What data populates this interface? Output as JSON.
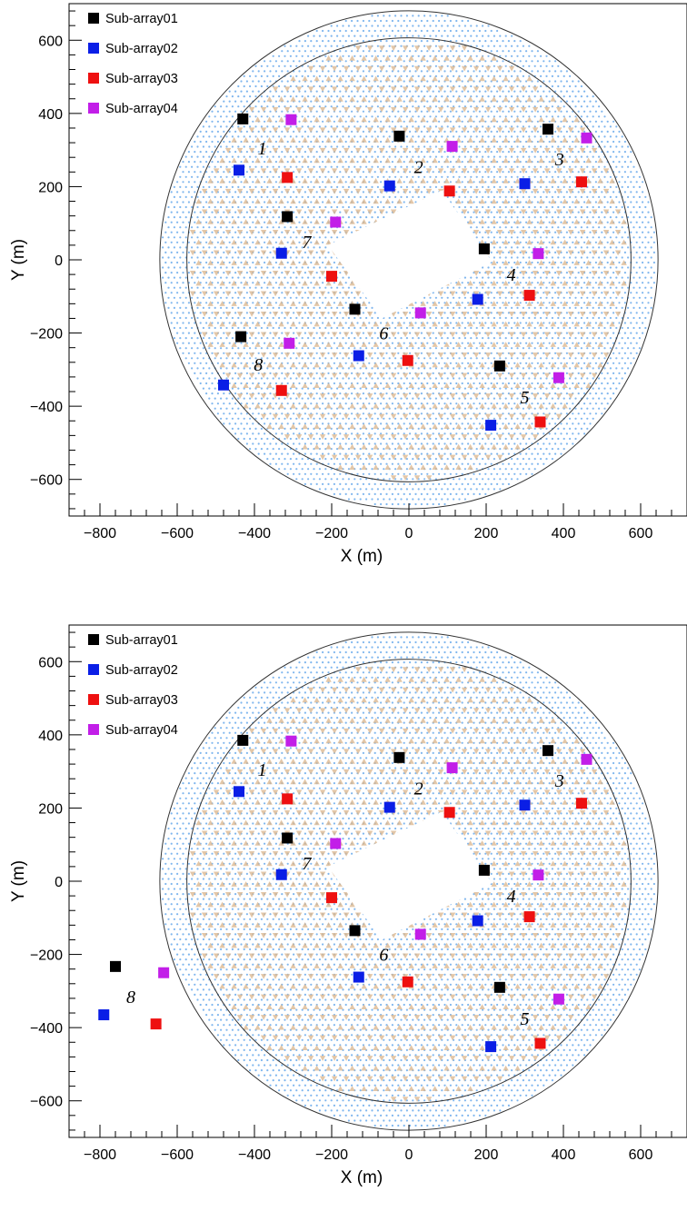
{
  "colors": {
    "Sub-array01": "#000000",
    "Sub-array02": "#0a1ee6",
    "Sub-array03": "#ee1010",
    "Sub-array04": "#c21ee8",
    "detector_blue": "#7fb6ee",
    "detector_tan": "#d9b48b",
    "circle": "#333333"
  },
  "chart_data": [
    {
      "type": "scatter",
      "xlabel": "X (m)",
      "ylabel": "Y (m)",
      "xlim": [
        -880,
        720
      ],
      "ylim": [
        -700,
        700
      ],
      "xticks": [
        -800,
        -600,
        -400,
        -200,
        0,
        200,
        400,
        600
      ],
      "yticks": [
        -600,
        -400,
        -200,
        0,
        200,
        400,
        600
      ],
      "xtick_labels": [
        "−800",
        "−600",
        "−400",
        "−200",
        "0",
        "200",
        "400",
        "600"
      ],
      "ytick_labels": [
        "−600",
        "−400",
        "−200",
        "0",
        "200",
        "400",
        "600"
      ],
      "legend_position": "top-left",
      "boundary_circles_radius": [
        575,
        645
      ],
      "central_hole": [
        [
          -210,
          40
        ],
        [
          85,
          190
        ],
        [
          215,
          -5
        ],
        [
          -70,
          -160
        ]
      ],
      "series": [
        {
          "name": "Sub-array01",
          "points": [
            [
              -430,
              385
            ],
            [
              -25,
              338
            ],
            [
              360,
              357
            ],
            [
              195,
              30
            ],
            [
              -315,
              118
            ],
            [
              -140,
              -135
            ],
            [
              -435,
              -210
            ],
            [
              235,
              -290
            ]
          ]
        },
        {
          "name": "Sub-array02",
          "points": [
            [
              -440,
              245
            ],
            [
              -50,
              202
            ],
            [
              300,
              208
            ],
            [
              178,
              -108
            ],
            [
              -330,
              18
            ],
            [
              -130,
              -262
            ],
            [
              -480,
              -342
            ],
            [
              212,
              -452
            ]
          ]
        },
        {
          "name": "Sub-array03",
          "points": [
            [
              -315,
              225
            ],
            [
              105,
              188
            ],
            [
              447,
              213
            ],
            [
              312,
              -97
            ],
            [
              -200,
              -45
            ],
            [
              -3,
              -275
            ],
            [
              -330,
              -357
            ],
            [
              340,
              -443
            ]
          ]
        },
        {
          "name": "Sub-array04",
          "points": [
            [
              -305,
              383
            ],
            [
              112,
              310
            ],
            [
              460,
              333
            ],
            [
              335,
              17
            ],
            [
              -190,
              103
            ],
            [
              30,
              -145
            ],
            [
              -310,
              -228
            ],
            [
              388,
              -322
            ]
          ]
        }
      ],
      "group_labels": [
        {
          "text": "1",
          "x": -380,
          "y": 305
        },
        {
          "text": "2",
          "x": 25,
          "y": 255
        },
        {
          "text": "3",
          "x": 390,
          "y": 275
        },
        {
          "text": "4",
          "x": 265,
          "y": -40
        },
        {
          "text": "5",
          "x": 300,
          "y": -375
        },
        {
          "text": "6",
          "x": -65,
          "y": -200
        },
        {
          "text": "7",
          "x": -265,
          "y": 50
        },
        {
          "text": "8",
          "x": -390,
          "y": -285
        }
      ]
    },
    {
      "type": "scatter",
      "xlabel": "X (m)",
      "ylabel": "Y (m)",
      "xlim": [
        -880,
        720
      ],
      "ylim": [
        -700,
        700
      ],
      "xticks": [
        -800,
        -600,
        -400,
        -200,
        0,
        200,
        400,
        600
      ],
      "yticks": [
        -600,
        -400,
        -200,
        0,
        200,
        400,
        600
      ],
      "xtick_labels": [
        "−800",
        "−600",
        "−400",
        "−200",
        "0",
        "200",
        "400",
        "600"
      ],
      "ytick_labels": [
        "−600",
        "−400",
        "−200",
        "0",
        "200",
        "400",
        "600"
      ],
      "legend_position": "top-left",
      "boundary_circles_radius": [
        575,
        645
      ],
      "central_hole": [
        [
          -210,
          40
        ],
        [
          85,
          190
        ],
        [
          215,
          -5
        ],
        [
          -70,
          -160
        ]
      ],
      "series": [
        {
          "name": "Sub-array01",
          "points": [
            [
              -430,
              385
            ],
            [
              -25,
              338
            ],
            [
              360,
              357
            ],
            [
              195,
              30
            ],
            [
              -315,
              118
            ],
            [
              -140,
              -135
            ],
            [
              -760,
              -233
            ],
            [
              235,
              -290
            ]
          ]
        },
        {
          "name": "Sub-array02",
          "points": [
            [
              -440,
              245
            ],
            [
              -50,
              202
            ],
            [
              300,
              208
            ],
            [
              178,
              -108
            ],
            [
              -330,
              18
            ],
            [
              -130,
              -262
            ],
            [
              -790,
              -365
            ],
            [
              212,
              -452
            ]
          ]
        },
        {
          "name": "Sub-array03",
          "points": [
            [
              -315,
              225
            ],
            [
              105,
              188
            ],
            [
              447,
              213
            ],
            [
              312,
              -97
            ],
            [
              -200,
              -45
            ],
            [
              -3,
              -275
            ],
            [
              -655,
              -390
            ],
            [
              340,
              -443
            ]
          ]
        },
        {
          "name": "Sub-array04",
          "points": [
            [
              -305,
              383
            ],
            [
              112,
              310
            ],
            [
              460,
              333
            ],
            [
              335,
              17
            ],
            [
              -190,
              103
            ],
            [
              30,
              -145
            ],
            [
              -635,
              -250
            ],
            [
              388,
              -322
            ]
          ]
        }
      ],
      "group_labels": [
        {
          "text": "1",
          "x": -380,
          "y": 305
        },
        {
          "text": "2",
          "x": 25,
          "y": 255
        },
        {
          "text": "3",
          "x": 390,
          "y": 275
        },
        {
          "text": "4",
          "x": 265,
          "y": -40
        },
        {
          "text": "5",
          "x": 300,
          "y": -375
        },
        {
          "text": "6",
          "x": -65,
          "y": -200
        },
        {
          "text": "7",
          "x": -265,
          "y": 50
        },
        {
          "text": "8",
          "x": -720,
          "y": -315
        }
      ]
    }
  ]
}
